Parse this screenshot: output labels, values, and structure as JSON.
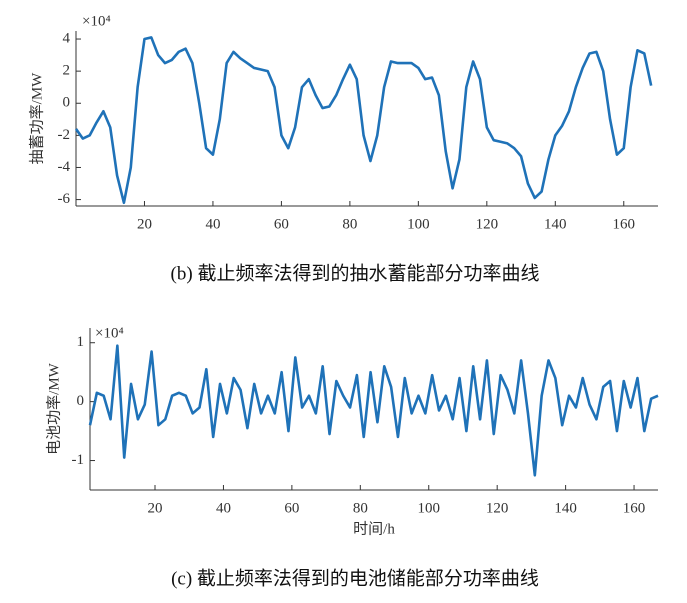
{
  "chart_data": [
    {
      "type": "line",
      "caption": "(b) 截止频率法得到的抽水蓄能部分功率曲线",
      "ylabel": "抽蓄功率/MW",
      "exponent": "×10⁴",
      "x": [
        0,
        2,
        4,
        6,
        8,
        10,
        12,
        14,
        16,
        18,
        20,
        22,
        24,
        26,
        28,
        30,
        32,
        34,
        36,
        38,
        40,
        42,
        44,
        46,
        48,
        50,
        52,
        54,
        56,
        58,
        60,
        62,
        64,
        66,
        68,
        70,
        72,
        74,
        76,
        78,
        80,
        82,
        84,
        86,
        88,
        90,
        92,
        94,
        96,
        98,
        100,
        102,
        104,
        106,
        108,
        110,
        112,
        114,
        116,
        118,
        120,
        122,
        124,
        126,
        128,
        130,
        132,
        134,
        136,
        138,
        140,
        142,
        144,
        146,
        148,
        150,
        152,
        154,
        156,
        158,
        160,
        162,
        164,
        166,
        168
      ],
      "series": [
        {
          "color": "#1f72b8",
          "values": [
            -1.6,
            -2.2,
            -2,
            -1.2,
            -0.5,
            -1.5,
            -4.5,
            -6.2,
            -4,
            1,
            4,
            4.1,
            3,
            2.5,
            2.7,
            3.2,
            3.4,
            2.5,
            0,
            -2.8,
            -3.2,
            -1,
            2.5,
            3.2,
            2.8,
            2.5,
            2.2,
            2.1,
            2,
            1,
            -2,
            -2.8,
            -1.5,
            1,
            1.5,
            0.5,
            -0.3,
            -0.2,
            0.5,
            1.5,
            2.4,
            1.5,
            -2,
            -3.6,
            -2,
            1,
            2.6,
            2.5,
            2.5,
            2.5,
            2.2,
            1.5,
            1.6,
            0.5,
            -3,
            -5.3,
            -3.5,
            1,
            2.6,
            1.5,
            -1.5,
            -2.3,
            -2.4,
            -2.5,
            -2.8,
            -3.3,
            -5,
            -5.9,
            -5.5,
            -3.5,
            -2,
            -1.4,
            -0.5,
            1,
            2.2,
            3.1,
            3.2,
            2,
            -1,
            -3.2,
            -2.8,
            1,
            3.3,
            3.1,
            1.1
          ]
        }
      ],
      "xlim": [
        0,
        170
      ],
      "xticks": [
        20,
        40,
        60,
        80,
        100,
        120,
        140,
        160
      ],
      "ylim": [
        -6.4,
        4.5
      ],
      "yticks": [
        -6,
        -4,
        -2,
        0,
        2,
        4
      ]
    },
    {
      "type": "line",
      "caption": "(c) 截止频率法得到的电池储能部分功率曲线",
      "ylabel": "电池功率/MW",
      "xlabel": "时间/h",
      "exponent": "×10⁴",
      "x": [
        1,
        3,
        5,
        7,
        9,
        11,
        13,
        15,
        17,
        19,
        21,
        23,
        25,
        27,
        29,
        31,
        33,
        35,
        37,
        39,
        41,
        43,
        45,
        47,
        49,
        51,
        53,
        55,
        57,
        59,
        61,
        63,
        65,
        67,
        69,
        71,
        73,
        75,
        77,
        79,
        81,
        83,
        85,
        87,
        89,
        91,
        93,
        95,
        97,
        99,
        101,
        103,
        105,
        107,
        109,
        111,
        113,
        115,
        117,
        119,
        121,
        123,
        125,
        127,
        129,
        131,
        133,
        135,
        137,
        139,
        141,
        143,
        145,
        147,
        149,
        151,
        153,
        155,
        157,
        159,
        161,
        163,
        165,
        167
      ],
      "series": [
        {
          "color": "#1f72b8",
          "values": [
            -0.4,
            0.15,
            0.1,
            -0.3,
            0.95,
            -0.95,
            0.3,
            -0.3,
            -0.05,
            0.85,
            -0.4,
            -0.3,
            0.1,
            0.15,
            0.1,
            -0.2,
            -0.1,
            0.55,
            -0.6,
            0.3,
            -0.2,
            0.4,
            0.2,
            -0.45,
            0.3,
            -0.2,
            0.1,
            -0.2,
            0.5,
            -0.5,
            0.75,
            -0.1,
            0.1,
            -0.2,
            0.6,
            -0.55,
            0.35,
            0.1,
            -0.1,
            0.45,
            -0.6,
            0.5,
            -0.35,
            0.6,
            0.25,
            -0.6,
            0.4,
            -0.2,
            0.1,
            -0.2,
            0.45,
            -0.15,
            0.1,
            -0.3,
            0.4,
            -0.5,
            0.6,
            -0.3,
            0.7,
            -0.55,
            0.45,
            0.2,
            -0.2,
            0.7,
            -0.2,
            -1.25,
            0.1,
            0.7,
            0.4,
            -0.4,
            0.1,
            -0.1,
            0.4,
            -0.05,
            -0.3,
            0.25,
            0.35,
            -0.5,
            0.35,
            -0.1,
            0.4,
            -0.5,
            0.05,
            0.1
          ]
        }
      ],
      "xlim": [
        1,
        167
      ],
      "xticks": [
        20,
        40,
        60,
        80,
        100,
        120,
        140,
        160
      ],
      "ylim": [
        -1.5,
        1.25
      ],
      "yticks": [
        -1,
        0,
        1
      ]
    }
  ]
}
